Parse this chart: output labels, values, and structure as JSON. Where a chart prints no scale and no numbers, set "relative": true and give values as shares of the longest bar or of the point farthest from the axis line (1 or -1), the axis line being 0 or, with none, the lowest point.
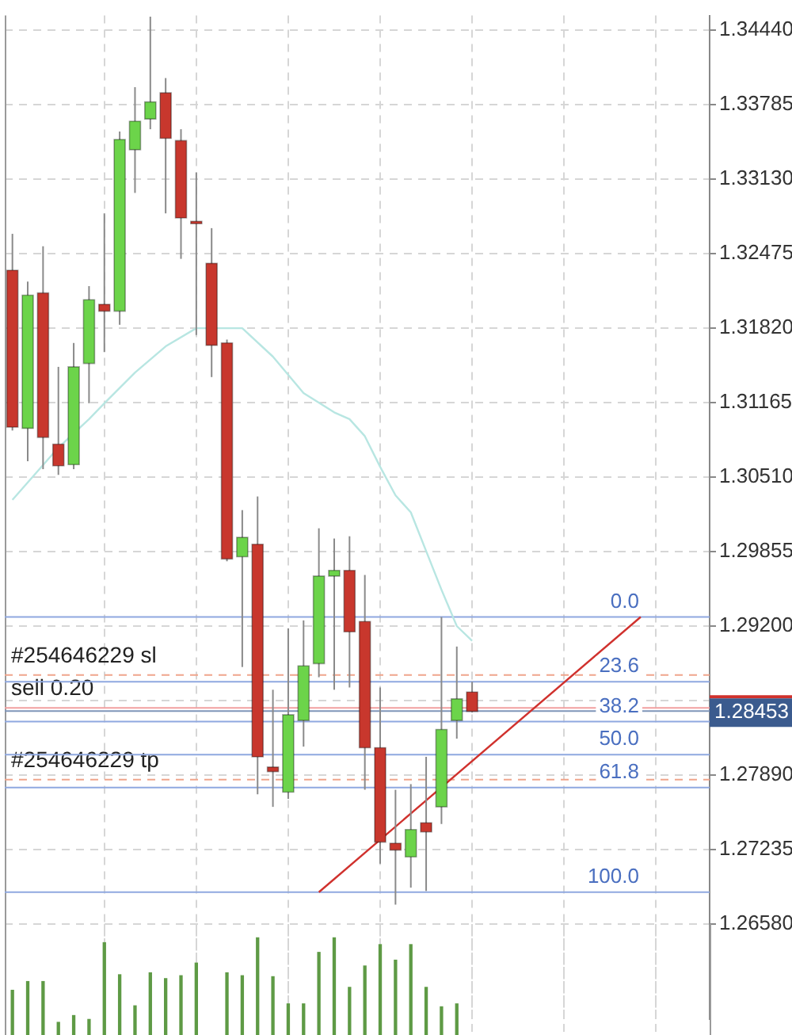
{
  "chart_data": [
    {
      "type": "candlestick",
      "categories": [
        null,
        null,
        null,
        null,
        null,
        null,
        null,
        null,
        null,
        null,
        null,
        null,
        null,
        null,
        null,
        null,
        null,
        null,
        null,
        null,
        null,
        null,
        null,
        null,
        null,
        null,
        null,
        null,
        null,
        null,
        null,
        null,
        null,
        null,
        null,
        null,
        null,
        null,
        null,
        null,
        null,
        null,
        null,
        null,
        null,
        null
      ],
      "ohlc": [
        [
          1.3233,
          1.3265,
          1.3092,
          1.3095
        ],
        [
          1.3094,
          1.3223,
          1.3065,
          1.3211
        ],
        [
          1.3213,
          1.3254,
          1.3058,
          1.3086
        ],
        [
          1.308,
          1.3148,
          1.3053,
          1.3061
        ],
        [
          1.3062,
          1.3169,
          1.3058,
          1.3148
        ],
        [
          1.3151,
          1.3219,
          1.3116,
          1.3207
        ],
        [
          1.3203,
          1.3283,
          1.3161,
          1.3197
        ],
        [
          1.3197,
          1.3355,
          1.3185,
          1.3348
        ],
        [
          1.3339,
          1.3394,
          1.3301,
          1.3364
        ],
        [
          1.3366,
          1.3456,
          1.3357,
          1.3381
        ],
        [
          1.3389,
          1.3402,
          1.3283,
          1.3349
        ],
        [
          1.3347,
          1.3357,
          1.3243,
          1.3279
        ],
        [
          1.3276,
          1.3319,
          1.3176,
          1.3276
        ],
        [
          1.3239,
          1.327,
          1.3139,
          1.3167
        ],
        [
          1.3169,
          1.3172,
          1.2977,
          1.2979
        ],
        [
          1.2981,
          1.3022,
          1.2884,
          1.2998
        ],
        [
          1.2992,
          1.3034,
          1.2772,
          1.2805
        ],
        [
          1.2796,
          1.2864,
          1.2761,
          1.2792
        ],
        [
          1.2774,
          1.2918,
          1.2768,
          1.2842
        ],
        [
          1.2837,
          1.2925,
          1.2814,
          1.2885
        ],
        [
          1.2887,
          1.3006,
          1.2875,
          1.2964
        ],
        [
          1.2964,
          1.2997,
          1.2864,
          1.2969
        ],
        [
          1.2969,
          1.2999,
          1.2866,
          1.2915
        ],
        [
          1.2924,
          1.2965,
          1.2776,
          1.2813
        ],
        [
          1.2813,
          1.2866,
          1.2711,
          1.273
        ],
        [
          1.2729,
          1.2776,
          1.2675,
          1.2723
        ],
        [
          1.2717,
          1.2781,
          1.269,
          1.2741
        ],
        [
          1.2747,
          1.2805,
          1.2687,
          1.2739
        ],
        [
          1.2761,
          1.2928,
          1.2746,
          1.2829
        ],
        [
          1.2837,
          1.2902,
          1.2821,
          1.2856
        ],
        [
          1.2862,
          1.2871,
          1.2844,
          1.2845
        ],
        null,
        null,
        null,
        null,
        null,
        null,
        null,
        null,
        null,
        null,
        null,
        null,
        null,
        null,
        null
      ],
      "colors": [
        "#c8372d",
        "#6cd44a",
        "#c8372d",
        "#c8372d",
        "#6cd44a",
        "#6cd44a",
        "#c8372d",
        "#6cd44a",
        "#6cd44a",
        "#6cd44a",
        "#c8372d",
        "#c8372d",
        "#c8372d",
        "#c8372d",
        "#c8372d",
        "#6cd44a",
        "#c8372d",
        "#c8372d",
        "#6cd44a",
        "#6cd44a",
        "#6cd44a",
        "#6cd44a",
        "#c8372d",
        "#c8372d",
        "#c8372d",
        "#c8372d",
        "#6cd44a",
        "#c8372d",
        "#6cd44a",
        "#6cd44a",
        "#c8372d",
        null,
        null,
        null,
        null,
        null,
        null,
        null,
        null,
        null,
        null,
        null,
        null,
        null,
        null,
        null
      ],
      "series": [
        {
          "type": "line",
          "color": "#b8e6e2",
          "values": [
            1.3031,
            null,
            null,
            1.3077,
            null,
            1.3102,
            1.3116,
            null,
            1.3143,
            null,
            1.3166,
            null,
            1.3182,
            null,
            null,
            1.3182,
            null,
            1.3157,
            null,
            1.3125,
            null,
            1.3108,
            1.3102,
            1.3087,
            1.306,
            1.3035,
            1.302,
            1.2986,
            1.2952,
            1.292,
            1.2907,
            null,
            null,
            null,
            null,
            null,
            null,
            null,
            null,
            null,
            null,
            null,
            null,
            null,
            null,
            null
          ]
        },
        {
          "type": "line",
          "color": "#d0312d",
          "values": [
            null,
            null,
            null,
            null,
            null,
            null,
            null,
            null,
            null,
            null,
            null,
            null,
            null,
            null,
            null,
            null,
            null,
            null,
            null,
            null,
            1.2686,
            null,
            null,
            null,
            null,
            null,
            null,
            null,
            null,
            null,
            null,
            null,
            null,
            null,
            null,
            null,
            null,
            null,
            null,
            null,
            null,
            1.2928,
            null,
            null,
            null,
            null
          ]
        }
      ],
      "ylim": [
        1.2574,
        1.3457
      ],
      "yticks": [
        {
          "value": 1.2658,
          "label": "1.26580"
        },
        1.27235,
        {
          "value": 1.2789,
          "label": "1.27890"
        },
        {
          "value": 1.28545,
          "label": null
        },
        {
          "value": 1.292,
          "label": "1.29200"
        },
        1.29855,
        {
          "value": 1.3051,
          "label": "1.30510"
        },
        1.31165,
        {
          "value": 1.3182,
          "label": "1.31820"
        },
        1.32475,
        {
          "value": 1.3313,
          "label": "1.33130"
        },
        1.33785,
        {
          "value": 1.3444,
          "label": "1.34440"
        }
      ],
      "tick_labels": "y",
      "grid": true,
      "ref_lines": [
        {
          "axis": "y",
          "value": 1.2877,
          "label": "#254646229 sl",
          "color": "#f0a58c",
          "line_style": "dashed"
        },
        {
          "axis": "y",
          "value": 1.2848,
          "label": "sell 0.20",
          "color": "#f2a0a0",
          "line_style": "solid"
        },
        {
          "axis": "y",
          "value": 1.2785,
          "label": "#254646229 tp",
          "color": "#f0a58c",
          "line_style": "dashed"
        },
        {
          "axis": "y",
          "value": 1.28453,
          "label": "1.28453",
          "color": "#7f95b8"
        },
        {
          "axis": "y",
          "value": 1.2928,
          "color": "#8fa8e0"
        },
        {
          "axis": "y",
          "value": 1.2871,
          "color": "#8fa8e0"
        },
        {
          "axis": "y",
          "value": 1.2836,
          "color": "#8fa8e0"
        },
        {
          "axis": "y",
          "value": 1.2807,
          "color": "#8fa8e0"
        },
        {
          "axis": "y",
          "value": 1.2778,
          "color": "#8fa8e0"
        },
        {
          "axis": "y",
          "value": 1.2686,
          "color": "#8fa8e0"
        }
      ],
      "annotations": [
        {
          "text": "0.0",
          "y": 1.2928
        },
        {
          "text": "23.6",
          "y": 1.2871
        },
        {
          "text": "38.2",
          "y": 1.2836
        },
        {
          "text": "50.0",
          "y": 1.2807
        },
        {
          "text": "61.8",
          "y": 1.2778
        },
        {
          "text": "100.0",
          "y": 1.2686
        }
      ]
    },
    {
      "type": "bar",
      "relative": true,
      "categories": [
        null,
        null,
        null,
        null,
        null,
        null,
        null,
        null,
        null,
        null,
        null,
        null,
        null,
        null,
        null,
        null,
        null,
        null,
        null,
        null,
        null,
        null,
        null,
        null,
        null,
        null,
        null,
        null,
        null,
        null,
        null,
        null,
        null,
        null,
        null,
        null,
        null,
        null,
        null,
        null,
        null,
        null,
        null,
        null,
        null,
        null
      ],
      "values": [
        0.46,
        0.55,
        0.55,
        0.13,
        0.2,
        0.16,
        0.95,
        0.62,
        0.3,
        0.64,
        0.58,
        0.61,
        0.74,
        null,
        0.64,
        0.61,
        1,
        0.6,
        0.32,
        0.32,
        0.85,
        1,
        0.49,
        0.71,
        0.93,
        0.77,
        0.93,
        0.49,
        0.29,
        0.32,
        null,
        null,
        null,
        null,
        null,
        null,
        null,
        null,
        null,
        null,
        null,
        null,
        null,
        null,
        null,
        null
      ],
      "color": "#5e9a45",
      "tick_labels": false,
      "grid": "x"
    }
  ]
}
